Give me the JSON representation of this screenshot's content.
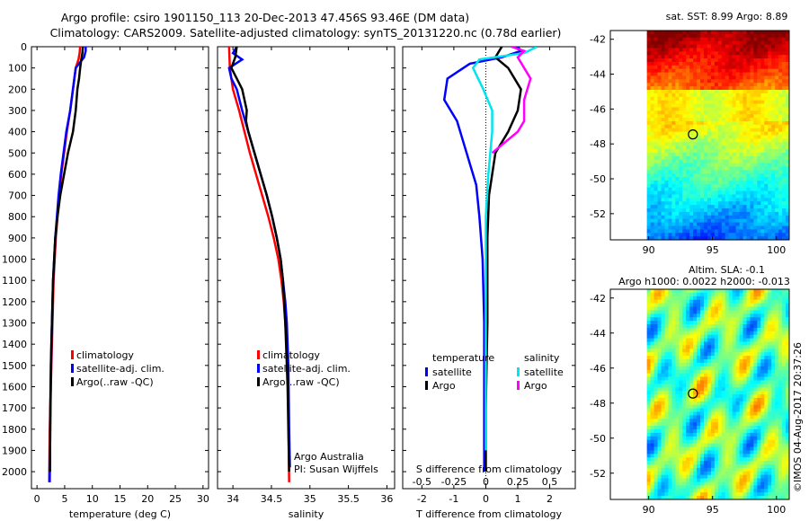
{
  "header": {
    "line1": "Argo profile: csiro 1901150_113 20-Dec-2013 47.456S 93.46E (DM data)",
    "line2": "Climatology: CARS2009. Satellite-adjusted climatology: synTS_20131220.nc (0.78d earlier)"
  },
  "colors": {
    "red": "#ff0000",
    "blue": "#0000ff",
    "black": "#000000",
    "cyan": "#00e5ee",
    "magenta": "#ff00ff"
  },
  "side_text": "©IMOS 04-Aug-2017 20:37:26",
  "chart_data": [
    {
      "id": "temperature",
      "type": "line",
      "xlabel": "temperature (deg C)",
      "ylabel": "",
      "xlim": [
        -1,
        31
      ],
      "ylim": [
        2080,
        0
      ],
      "xticks": [
        0,
        5,
        10,
        15,
        20,
        25,
        30
      ],
      "xticklabels": [
        "0",
        "5",
        "10",
        "15",
        "20",
        "25",
        "30"
      ],
      "yticks": [
        0,
        100,
        200,
        300,
        400,
        500,
        600,
        700,
        800,
        900,
        1000,
        1100,
        1200,
        1300,
        1400,
        1500,
        1600,
        1700,
        1800,
        1900,
        2000
      ],
      "yticklabels": [
        "0",
        "100",
        "200",
        "300",
        "400",
        "500",
        "600",
        "700",
        "800",
        "900",
        "1000",
        "1100",
        "1200",
        "1300",
        "1400",
        "1500",
        "1600",
        "1700",
        "1800",
        "1900",
        "2000"
      ],
      "legend": [
        "climatology",
        "satellite-adj. clim.",
        "Argo(..raw -QC)"
      ],
      "series": [
        {
          "name": "climatology",
          "color": "red",
          "x": [
            7.8,
            7.7,
            7.5,
            7.0,
            6.5,
            6.0,
            5.4,
            4.9,
            4.4,
            4.0,
            3.7,
            3.4,
            3.2,
            3.0,
            2.9,
            2.8,
            2.7,
            2.6,
            2.5,
            2.4,
            2.3,
            2.2
          ],
          "y": [
            0,
            30,
            60,
            100,
            200,
            300,
            400,
            500,
            600,
            700,
            800,
            900,
            1000,
            1100,
            1200,
            1300,
            1400,
            1500,
            1600,
            1700,
            1800,
            2050
          ]
        },
        {
          "name": "satellite-adj. clim.",
          "color": "blue",
          "x": [
            8.8,
            8.8,
            8.5,
            7.0,
            6.5,
            6.0,
            5.3,
            4.8,
            4.3,
            3.9,
            3.6,
            3.3,
            3.1,
            2.9,
            2.8,
            2.7,
            2.6,
            2.55,
            2.5,
            2.45,
            2.4,
            2.3
          ],
          "y": [
            0,
            20,
            50,
            100,
            200,
            300,
            400,
            500,
            600,
            700,
            800,
            900,
            1000,
            1100,
            1200,
            1300,
            1400,
            1500,
            1600,
            1700,
            1800,
            2050
          ]
        },
        {
          "name": "Argo(..raw -QC)",
          "color": "black",
          "x": [
            8.3,
            8.2,
            8.0,
            7.8,
            7.6,
            7.3,
            7.0,
            6.5,
            5.6,
            4.9,
            4.2,
            3.7,
            3.3,
            3.1,
            2.9,
            2.8,
            2.7,
            2.6,
            2.5,
            2.4,
            2.35
          ],
          "y": [
            0,
            30,
            60,
            100,
            150,
            200,
            300,
            400,
            500,
            600,
            700,
            800,
            900,
            1000,
            1100,
            1200,
            1300,
            1400,
            1500,
            1700,
            2000
          ]
        }
      ],
      "annotations": []
    },
    {
      "id": "salinity",
      "type": "line",
      "xlabel": "salinity",
      "ylabel": "",
      "xlim": [
        33.8,
        36.1
      ],
      "ylim": [
        2080,
        0
      ],
      "xticks": [
        34,
        34.5,
        35,
        35.5,
        36
      ],
      "xticklabels": [
        "34",
        "34.5",
        "35",
        "35.5",
        "36"
      ],
      "legend": [
        "climatology",
        "satellite-adj. clim.",
        "Argo(..raw -QC)"
      ],
      "series": [
        {
          "name": "climatology",
          "color": "red",
          "x": [
            33.95,
            33.96,
            34.0,
            34.08,
            34.15,
            34.22,
            34.3,
            34.38,
            34.46,
            34.53,
            34.59,
            34.63,
            34.66,
            34.68,
            34.7,
            34.71,
            34.72,
            34.73
          ],
          "y": [
            0,
            100,
            200,
            300,
            400,
            500,
            600,
            700,
            800,
            900,
            1000,
            1100,
            1200,
            1300,
            1400,
            1500,
            1700,
            2050
          ]
        },
        {
          "name": "satellite-adj. clim.",
          "color": "blue",
          "x": [
            34.05,
            34.0,
            34.12,
            33.95,
            33.98,
            34.05,
            34.12,
            34.2,
            34.28,
            34.36,
            34.44,
            34.51,
            34.57,
            34.62,
            34.65,
            34.68,
            34.7,
            34.72,
            34.73,
            34.74
          ],
          "y": [
            0,
            30,
            60,
            100,
            150,
            200,
            300,
            400,
            500,
            600,
            700,
            800,
            900,
            1000,
            1100,
            1200,
            1300,
            1500,
            1800,
            1980
          ]
        },
        {
          "name": "Argo(..raw -QC)",
          "color": "black",
          "x": [
            34.05,
            34.03,
            33.98,
            34.05,
            34.12,
            34.15,
            34.18,
            34.17,
            34.2,
            34.28,
            34.36,
            34.44,
            34.51,
            34.57,
            34.62,
            34.65,
            34.68,
            34.71,
            34.73
          ],
          "y": [
            0,
            50,
            100,
            150,
            200,
            250,
            300,
            350,
            400,
            500,
            600,
            700,
            800,
            900,
            1000,
            1100,
            1300,
            1600,
            2000
          ]
        }
      ],
      "annotations": [
        "Argo Australia",
        "PI: Susan Wijffels"
      ]
    },
    {
      "id": "difference",
      "type": "line",
      "xlabel": "T difference from climatology",
      "xlabel2": "S difference from climatology",
      "ylabel": "",
      "xlim": [
        -2.6,
        2.8
      ],
      "ylim": [
        2080,
        0
      ],
      "xticks": [
        -2,
        -1,
        0,
        1,
        2
      ],
      "xticklabels": [
        "-2",
        "-1",
        "0",
        "1",
        "2"
      ],
      "xticks2": [
        -0.5,
        -0.25,
        0,
        0.25,
        0.5
      ],
      "xticklabels2": [
        "-0.5",
        "-0.25",
        "0",
        "0.25",
        "0.5"
      ],
      "legend_headers": [
        "temperature",
        "salinity"
      ],
      "legend": [
        "satellite",
        "Argo",
        "satellite",
        "Argo"
      ],
      "series": [
        {
          "name": "satellite",
          "group": "temperature",
          "color": "blue",
          "x": [
            1.0,
            1.1,
            0.5,
            -0.5,
            -1.2,
            -1.3,
            -0.9,
            -0.7,
            -0.5,
            -0.3,
            -0.2,
            -0.1,
            -0.05,
            -0.05,
            -0.05,
            -0.05
          ],
          "y": [
            0,
            20,
            50,
            80,
            150,
            250,
            350,
            450,
            550,
            650,
            800,
            1000,
            1300,
            1500,
            1800,
            2000
          ]
        },
        {
          "name": "Argo",
          "group": "temperature",
          "color": "black",
          "x": [
            0.5,
            0.3,
            0.7,
            1.1,
            1.0,
            0.7,
            0.3,
            0.2,
            0.1,
            0.05,
            0.05,
            0.05,
            0.0,
            0.0
          ],
          "y": [
            0,
            50,
            100,
            200,
            300,
            400,
            500,
            600,
            700,
            900,
            1100,
            1300,
            1700,
            2000
          ]
        },
        {
          "name": "satellite",
          "group": "salinity",
          "color": "cyan",
          "x": [
            0.4,
            0.3,
            -0.05,
            -0.1,
            -0.02,
            0.05,
            0.05,
            0.02,
            0.0,
            0.0,
            0.0
          ],
          "y": [
            0,
            30,
            60,
            100,
            200,
            300,
            400,
            600,
            800,
            1200,
            1900
          ]
        },
        {
          "name": "Argo",
          "group": "salinity",
          "color": "magenta",
          "x": [
            0.2,
            0.3,
            0.25,
            0.35,
            0.3,
            0.3,
            0.25,
            0.15,
            0.05
          ],
          "y": [
            0,
            20,
            50,
            150,
            250,
            350,
            400,
            450,
            500
          ]
        }
      ],
      "annotations": []
    },
    {
      "id": "sst_map",
      "type": "heatmap",
      "title": "sat. SST: 8.99 Argo: 8.89",
      "xlim": [
        87,
        101
      ],
      "ylim": [
        -53.5,
        -41.5
      ],
      "xticks": [
        90,
        95,
        100
      ],
      "xticklabels": [
        "90",
        "95",
        "100"
      ],
      "yticks": [
        -42,
        -44,
        -46,
        -48,
        -50,
        -52
      ],
      "yticklabels": [
        "-42",
        "-44",
        "-46",
        "-48",
        "-50",
        "-52"
      ],
      "marker": {
        "lon": 93.46,
        "lat": -47.456
      }
    },
    {
      "id": "sla_map",
      "type": "heatmap",
      "title": "Altim. SLA: -0.1",
      "subtitle": "Argo h1000: 0.0022 h2000: -0.013",
      "xlim": [
        87,
        101
      ],
      "ylim": [
        -53.5,
        -41.5
      ],
      "xticks": [
        90,
        95,
        100
      ],
      "xticklabels": [
        "90",
        "95",
        "100"
      ],
      "yticks": [
        -42,
        -44,
        -46,
        -48,
        -50,
        -52
      ],
      "yticklabels": [
        "-42",
        "-44",
        "-46",
        "-48",
        "-50",
        "-52"
      ],
      "marker": {
        "lon": 93.46,
        "lat": -47.456
      }
    }
  ]
}
